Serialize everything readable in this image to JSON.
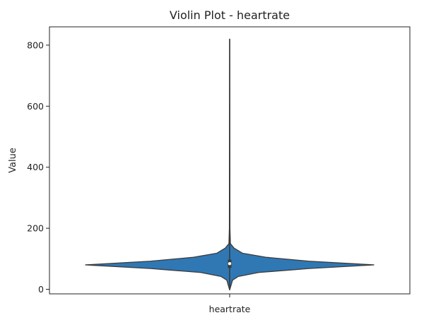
{
  "chart_data": {
    "type": "violin",
    "title": "Violin Plot - heartrate",
    "xlabel": "",
    "ylabel": "Value",
    "categories": [
      "heartrate"
    ],
    "ylim": [
      -15,
      860
    ],
    "yticks": [
      0,
      200,
      400,
      600,
      800
    ],
    "grid": false,
    "colors": {
      "violin_fill": "#2f78b4",
      "outline": "#3a3a3a",
      "median_dot": "#ffffff"
    },
    "violin": {
      "min": -2,
      "max": 820,
      "q1": 70,
      "median": 84,
      "q3": 97,
      "mode": 80,
      "density_profile": [
        {
          "y": -2,
          "w": 0.0
        },
        {
          "y": 30,
          "w": 0.02
        },
        {
          "y": 42,
          "w": 0.06
        },
        {
          "y": 55,
          "w": 0.2
        },
        {
          "y": 68,
          "w": 0.55
        },
        {
          "y": 80,
          "w": 1.0
        },
        {
          "y": 92,
          "w": 0.55
        },
        {
          "y": 105,
          "w": 0.25
        },
        {
          "y": 118,
          "w": 0.09
        },
        {
          "y": 135,
          "w": 0.03
        },
        {
          "y": 150,
          "w": 0.005
        },
        {
          "y": 200,
          "w": 0.002
        },
        {
          "y": 820,
          "w": 0.0
        }
      ]
    }
  }
}
